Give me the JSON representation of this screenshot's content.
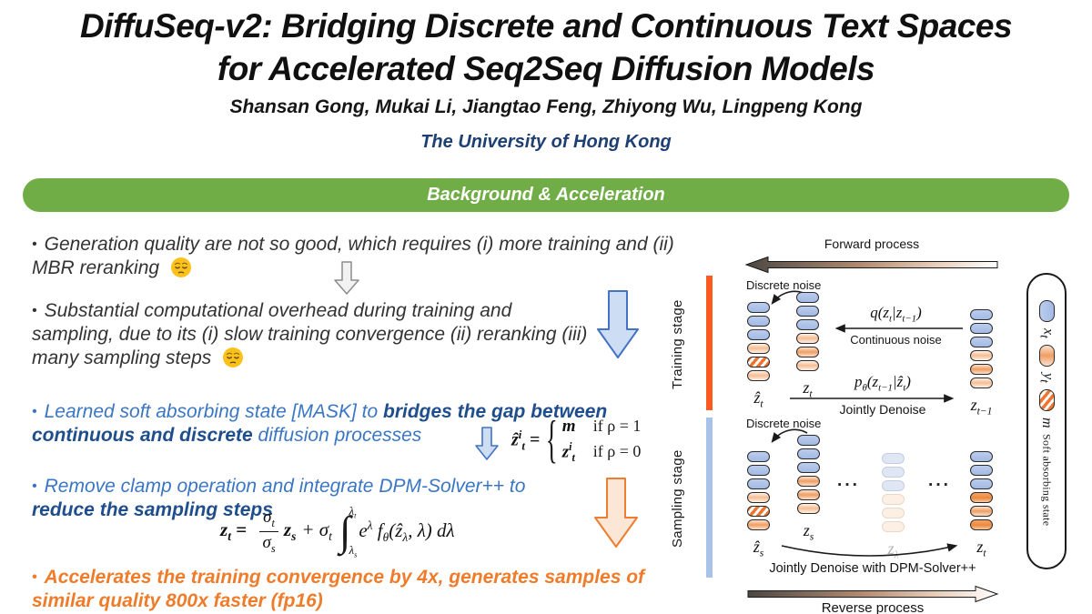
{
  "header": {
    "title_line1": "DiffuSeq-v2: Bridging Discrete and Continuous Text Spaces",
    "title_line2": "for Accelerated Seq2Seq Diffusion Models",
    "authors": "Shansan Gong, Mukai Li, Jiangtao Feng, Zhiyong Wu, Lingpeng Kong",
    "affiliation": "The University of Hong Kong",
    "banner": "Background & Acceleration"
  },
  "colors": {
    "banner_green": "#70ad47",
    "bullet_blue": "#3a76c4",
    "bullet_dark_blue": "#1f4e8c",
    "bullet_orange": "#ee7c2b",
    "training_bar": "#ff5a1f",
    "sampling_bar": "#a9c3e8"
  },
  "bullets": {
    "b1_text": "Generation quality are not so good, which requires (i) more training and (ii) MBR reranking",
    "b2_text": "Substantial computational overhead during training and sampling, due to its (i) slow training convergence (ii) reranking (iii) many sampling steps",
    "b3_seg1": "Learned soft absorbing state [MASK] to ",
    "b3_seg2": "bridges the gap between continuous and discrete",
    "b3_seg3": " diffusion processes",
    "b4_seg1": "Remove clamp operation and integrate DPM-Solver++ to ",
    "b4_seg2": "reduce the sampling steps",
    "b5_text": "Accelerates the training convergence by 4x, generates samples of similar quality 800x faster (fp16)"
  },
  "equations": {
    "eq1_lhs": "ẑ^{i}_{t} =",
    "eq1_val1": "m",
    "eq1_cond1": "if ρ = 1",
    "eq1_val2": "z^{i}_{t}",
    "eq1_cond2": "if ρ = 0",
    "eq2_lhs": "z_{t} =",
    "eq2_frac_num": "σ_{t}",
    "eq2_frac_den": "σ_{s}",
    "eq2_zs": "z_{s}",
    "eq2_plus": "+ σ_{t}",
    "eq2_int_upper": "λ_{t}",
    "eq2_int_lower": "λ_{s}",
    "eq2_integrand": "e^{λ} f_{θ}(ẑ_{λ}, λ) dλ"
  },
  "stages": {
    "training": "Training stage",
    "sampling": "Sampling stage"
  },
  "diagram": {
    "forward_label": "Forward process",
    "reverse_label": "Reverse process",
    "discrete_noise_top": "Discrete noise",
    "discrete_noise_bottom": "Discrete noise",
    "q_label": "q(z_{t}|z_{t−1})",
    "continuous_noise": "Continuous noise",
    "p_label": "p_{θ}(z_{t−1}|ẑ_{t})",
    "jointly_denoise": "Jointly Denoise",
    "jointly_denoise_dpm": "Jointly Denoise with DPM-Solver++",
    "dots": "···",
    "stacks": {
      "training": [
        {
          "label": "ẑ_{t}",
          "tokens": [
            "blue",
            "blue",
            "blue",
            "orange-light",
            "hatched",
            "orange-light"
          ]
        },
        {
          "label": "z_{t}",
          "tokens": [
            "blue",
            "blue",
            "blue",
            "orange-light",
            "orange-mid",
            "orange-light"
          ]
        },
        {
          "label": "z_{t−1}",
          "tokens": [
            "blue",
            "blue",
            "blue",
            "orange-light",
            "orange-mid",
            "orange-light"
          ]
        }
      ],
      "sampling": [
        {
          "label": "ẑ_{s}",
          "tokens": [
            "blue",
            "blue",
            "blue",
            "orange-light",
            "hatched",
            "orange-mid"
          ]
        },
        {
          "label": "z_{s}",
          "tokens": [
            "blue",
            "blue",
            "blue",
            "orange-mid",
            "orange-mid",
            "orange-light"
          ]
        },
        {
          "label": "z_{λ}",
          "tokens": [
            "faint-blue",
            "faint-blue",
            "faint-blue",
            "faint-orange",
            "faint-orange",
            "faint-orange"
          ]
        },
        {
          "label": "z_{t}",
          "tokens": [
            "blue",
            "blue",
            "blue",
            "orange-strong",
            "orange-mid",
            "orange-strong"
          ]
        }
      ]
    },
    "legend": {
      "x_label": "x_{t}",
      "y_label": "y_{t}",
      "m_label": "m",
      "m_desc": "Soft absorbing state"
    }
  }
}
